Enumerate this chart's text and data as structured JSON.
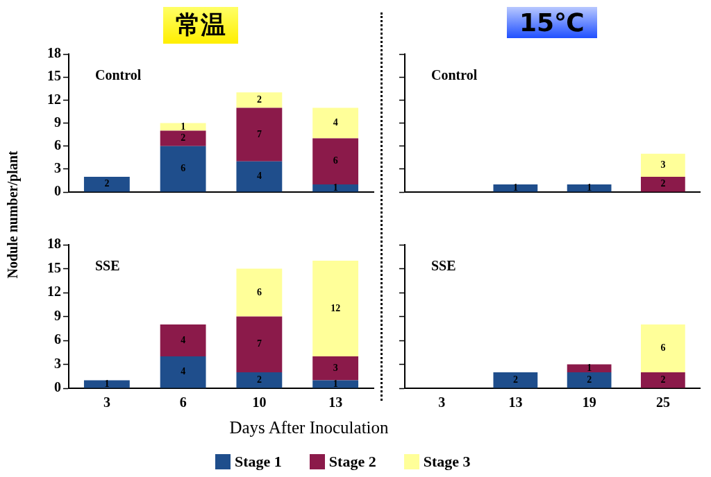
{
  "chart_data": [
    {
      "type": "bar",
      "title": "常温",
      "stacked": true,
      "categories": [
        "3",
        "6",
        "10",
        "13"
      ],
      "ylim": [
        0,
        18
      ],
      "yticks": [
        0,
        3,
        6,
        9,
        12,
        15,
        18
      ],
      "tick_labels": "y",
      "data_labels": true,
      "annotations": [
        "Control"
      ],
      "series": [
        {
          "color": "#1f4e8c",
          "values": [
            2,
            6,
            4,
            1
          ]
        },
        {
          "color": "#8b1a4a",
          "values": [
            null,
            2,
            7,
            6
          ]
        },
        {
          "color": "#ffff99",
          "values": [
            null,
            1,
            2,
            4
          ]
        }
      ]
    },
    {
      "type": "bar",
      "title": "15℃",
      "stacked": true,
      "categories": [
        "3",
        "13",
        "19",
        "25"
      ],
      "ylim": [
        0,
        18
      ],
      "yticks": [
        0,
        3,
        6,
        9,
        12,
        15,
        18
      ],
      "tick_labels": false,
      "data_labels": true,
      "annotations": [
        "Control"
      ],
      "series": [
        {
          "color": "#1f4e8c",
          "values": [
            null,
            1,
            1,
            null
          ]
        },
        {
          "color": "#8b1a4a",
          "values": [
            null,
            null,
            null,
            2
          ]
        },
        {
          "color": "#ffff99",
          "values": [
            null,
            null,
            null,
            3
          ]
        }
      ]
    },
    {
      "type": "bar",
      "stacked": true,
      "categories": [
        "3",
        "6",
        "10",
        "13"
      ],
      "ylim": [
        0,
        18
      ],
      "yticks": [
        0,
        3,
        6,
        9,
        12,
        15,
        18
      ],
      "data_labels": true,
      "annotations": [
        "SSE"
      ],
      "xlabel": "Days After Inoculation",
      "ylabel": "Nodule number/plant",
      "legend": "bottom",
      "series": [
        {
          "name": "Stage 1",
          "color": "#1f4e8c",
          "values": [
            1,
            4,
            2,
            1
          ]
        },
        {
          "name": "Stage 2",
          "color": "#8b1a4a",
          "values": [
            null,
            4,
            7,
            3
          ]
        },
        {
          "name": "Stage 3",
          "color": "#ffff99",
          "values": [
            null,
            null,
            6,
            12
          ]
        }
      ]
    },
    {
      "type": "bar",
      "stacked": true,
      "categories": [
        "3",
        "13",
        "19",
        "25"
      ],
      "ylim": [
        0,
        18
      ],
      "yticks": [
        0,
        3,
        6,
        9,
        12,
        15,
        18
      ],
      "tick_labels": "x",
      "data_labels": true,
      "annotations": [
        "SSE"
      ],
      "series": [
        {
          "color": "#1f4e8c",
          "values": [
            null,
            2,
            2,
            null
          ]
        },
        {
          "color": "#8b1a4a",
          "values": [
            null,
            null,
            1,
            2
          ]
        },
        {
          "color": "#ffff99",
          "values": [
            null,
            null,
            null,
            6
          ]
        }
      ]
    }
  ]
}
